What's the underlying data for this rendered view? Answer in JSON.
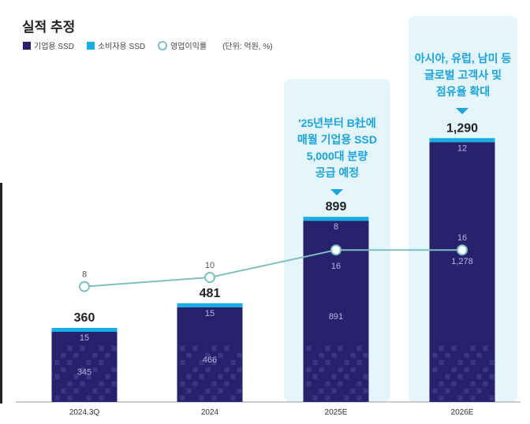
{
  "title": "실적 추정",
  "legend": {
    "enterprise": "기업용 SSD",
    "consumer": "소비자용 SSD",
    "margin": "영업이익률",
    "unit": "(단위: 억원, %)"
  },
  "colors": {
    "enterprise": "#27216e",
    "consumer": "#16aee6",
    "line": "#7fbfc0",
    "callout": "#1aa4e0",
    "panel": "#e4f5fc"
  },
  "callouts": {
    "c2025": [
      "'25년부터 B社에",
      "매월 기업용 SSD",
      "5,000대 분량",
      "공급 예정"
    ],
    "c2026": [
      "아시아, 유럽, 남미 등",
      "글로벌 고객사 및",
      "점유율 확대"
    ]
  },
  "chart_data": {
    "type": "bar",
    "categories": [
      "2024.3Q",
      "2024",
      "2025E",
      "2026E"
    ],
    "totals": [
      "360",
      "481",
      "899",
      "1,290"
    ],
    "series": [
      {
        "name": "기업용 SSD",
        "values": [
          345,
          466,
          891,
          1278
        ]
      },
      {
        "name": "소비자용 SSD",
        "values": [
          15,
          15,
          8,
          12
        ]
      },
      {
        "name": "영업이익률",
        "type": "line",
        "values": [
          8,
          10,
          16,
          16
        ]
      }
    ],
    "stacked": true,
    "grid": false,
    "legend": "top-left"
  }
}
